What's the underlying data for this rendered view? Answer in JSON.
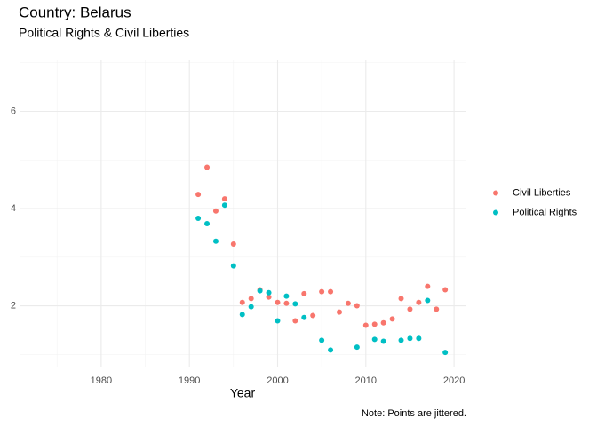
{
  "chart_data": {
    "type": "scatter",
    "title": "Country: Belarus",
    "subtitle": "Political Rights & Civil Liberties",
    "xlabel": "Year",
    "caption": "Note: Points are jittered.",
    "xlim": [
      1970.75,
      2021.4
    ],
    "xticks": [
      1980,
      1990,
      2000,
      2010,
      2020
    ],
    "ylim": [
      0.75,
      7.05
    ],
    "yticks": [
      2,
      4,
      6
    ],
    "grid": true,
    "legend": "right",
    "series": [
      {
        "name": "Civil Liberties",
        "color": "#F8766D",
        "x": [
          1991,
          1992,
          1993,
          1994,
          1995,
          1996,
          1997,
          1998,
          1999,
          2000,
          2001,
          2002,
          2003,
          2004,
          2005,
          2006,
          2007,
          2008,
          2009,
          2010,
          2011,
          2012,
          2013,
          2014,
          2015,
          2016,
          2017,
          2018,
          2019
        ],
        "values": [
          4.29,
          4.85,
          3.95,
          4.2,
          3.27,
          2.07,
          2.15,
          2.33,
          2.18,
          2.07,
          2.05,
          1.69,
          2.25,
          1.8,
          2.29,
          2.29,
          1.87,
          2.05,
          2.0,
          1.6,
          1.62,
          1.65,
          1.73,
          2.15,
          1.93,
          2.07,
          2.4,
          1.93,
          2.33
        ]
      },
      {
        "name": "Political Rights",
        "color": "#00BFC4",
        "x": [
          1991,
          1992,
          1993,
          1994,
          1995,
          1996,
          1997,
          1998,
          1999,
          2000,
          2001,
          2002,
          2003,
          2005,
          2006,
          2009,
          2011,
          2012,
          2014,
          2015,
          2016,
          2017,
          2019
        ],
        "values": [
          3.8,
          3.69,
          3.33,
          4.07,
          2.82,
          1.82,
          1.98,
          2.31,
          2.27,
          1.69,
          2.2,
          2.04,
          1.76,
          1.29,
          1.09,
          1.15,
          1.31,
          1.27,
          1.29,
          1.33,
          1.33,
          2.11,
          1.04
        ]
      }
    ]
  }
}
